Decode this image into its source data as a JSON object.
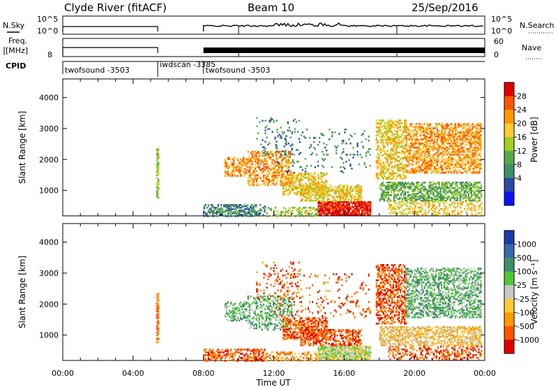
{
  "header": {
    "station": "Clyde River (fitACF)",
    "beam": "Beam 10",
    "date": "25/Sep/2016"
  },
  "status_panels": {
    "nsky_label": "N.Sky",
    "nsky_ticks": [
      "10^5",
      "10^0"
    ],
    "nsearch_label": "N.Search",
    "nsearch_ticks": [
      "10^5",
      "10^0"
    ],
    "freq_label_line1": "Freq.",
    "freq_label_line2": "[MHz]",
    "freq_ticks": [
      "8"
    ],
    "nave_label": "Nave",
    "nave_ticks": [
      "60",
      "0"
    ],
    "cpid_label": "CPID",
    "cpid_segments": [
      {
        "name": "twofsound",
        "id": "-3503",
        "start_h": 0.0,
        "end_h": 5.4
      },
      {
        "name": "iwdscan",
        "id": "-3385",
        "start_h": 5.4,
        "end_h": 8.0
      },
      {
        "name": "twofsound",
        "id": "-3503",
        "start_h": 8.0,
        "end_h": 24.0
      }
    ]
  },
  "chart_data": [
    {
      "type": "heatmap",
      "title": "",
      "quantity": "Power",
      "xlabel": "",
      "ylabel": "Slant Range [km]",
      "xlim_hours": [
        0,
        24
      ],
      "ylim": [
        180,
        4600
      ],
      "xticks": [
        "00:00",
        "04:00",
        "08:00",
        "12:00",
        "16:00",
        "20:00",
        "00:00"
      ],
      "yticks": [
        1000,
        2000,
        3000,
        4000
      ],
      "colorbar": {
        "label": "Power [dB]",
        "ticks": [
          "28",
          "24",
          "20",
          "16",
          "12",
          "8",
          "4"
        ],
        "colors": [
          "#e00000",
          "#ff5500",
          "#ff9900",
          "#ffcc33",
          "#9fd020",
          "#58a848",
          "#3e8e6a",
          "#2a4aa8",
          "#1010ff"
        ]
      }
    },
    {
      "type": "heatmap",
      "title": "",
      "quantity": "Velocity",
      "xlabel": "Time UT",
      "ylabel": "Slant Range [km]",
      "xlim_hours": [
        0,
        24
      ],
      "ylim": [
        180,
        4600
      ],
      "xticks": [
        "00:00",
        "04:00",
        "08:00",
        "12:00",
        "16:00",
        "20:00",
        "00:00"
      ],
      "yticks": [
        1000,
        2000,
        3000,
        4000
      ],
      "colorbar": {
        "label": "Velocity [m s⁻¹]",
        "ticks": [
          "1000",
          "500",
          "100",
          "25",
          "-25",
          "-100",
          "-500",
          "-1000"
        ],
        "colors": [
          "#1a3aa8",
          "#3a6aa8",
          "#3e8e6a",
          "#4ec83a",
          "#c8c8c8",
          "#ffcc33",
          "#ff9900",
          "#ff5500",
          "#e00000"
        ]
      }
    }
  ],
  "scatter_regions": [
    {
      "h0": 5.32,
      "h1": 5.42,
      "r0": 800,
      "r1": 2400,
      "pal": 1,
      "den": 0.7
    },
    {
      "h0": 8.0,
      "h1": 11.5,
      "r0": 200,
      "r1": 600,
      "pal": 0,
      "den": 0.55
    },
    {
      "h0": 9.2,
      "h1": 10.5,
      "r0": 1500,
      "r1": 2100,
      "pal": 3,
      "den": 0.5
    },
    {
      "h0": 10.5,
      "h1": 13.0,
      "r0": 1200,
      "r1": 2300,
      "pal": 3,
      "den": 0.45
    },
    {
      "h0": 11.5,
      "h1": 14.5,
      "r0": 200,
      "r1": 500,
      "pal": 1,
      "den": 0.4
    },
    {
      "h0": 12.5,
      "h1": 15.0,
      "r0": 900,
      "r1": 1600,
      "pal": 2,
      "den": 0.55
    },
    {
      "h0": 14.5,
      "h1": 17.5,
      "r0": 250,
      "r1": 700,
      "pal": 4,
      "den": 0.85
    },
    {
      "h0": 13.5,
      "h1": 17.0,
      "r0": 700,
      "r1": 1200,
      "pal": 2,
      "den": 0.55
    },
    {
      "h0": 11.0,
      "h1": 13.5,
      "r0": 2200,
      "r1": 3400,
      "pal": 0,
      "den": 0.12
    },
    {
      "h0": 17.8,
      "h1": 19.5,
      "r0": 1400,
      "r1": 3300,
      "pal": 2,
      "den": 0.5
    },
    {
      "h0": 19.5,
      "h1": 23.8,
      "r0": 1600,
      "r1": 3200,
      "pal": 3,
      "den": 0.55
    },
    {
      "h0": 18.0,
      "h1": 23.8,
      "r0": 700,
      "r1": 1300,
      "pal": 5,
      "den": 0.6
    },
    {
      "h0": 18.5,
      "h1": 23.8,
      "r0": 250,
      "r1": 700,
      "pal": 2,
      "den": 0.35
    },
    {
      "h0": 12.0,
      "h1": 17.5,
      "r0": 1600,
      "r1": 3000,
      "pal": 0,
      "den": 0.08
    }
  ]
}
